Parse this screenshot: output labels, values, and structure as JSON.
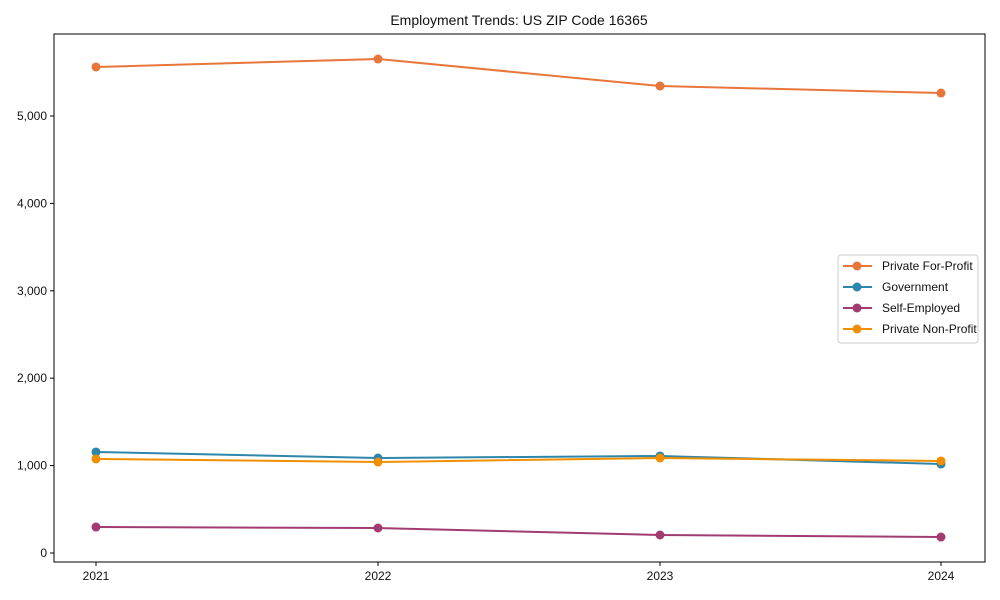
{
  "chart_data": {
    "type": "line",
    "title": "Employment Trends: US ZIP Code 16365",
    "xlabel": "",
    "ylabel": "",
    "categories": [
      "2021",
      "2022",
      "2023",
      "2024"
    ],
    "ylim": [
      -100,
      5900
    ],
    "yticks": [
      0,
      1000,
      2000,
      3000,
      4000,
      5000
    ],
    "ytick_labels": [
      "0",
      "1,000",
      "2,000",
      "3,000",
      "4,000",
      "5,000"
    ],
    "grid": false,
    "legend_position": "center right",
    "series": [
      {
        "name": "Private For-Profit",
        "color": "#E8763A",
        "values": [
          5561,
          5652,
          5343,
          5263
        ]
      },
      {
        "name": "Government",
        "color": "#2E86AB",
        "values": [
          1156,
          1087,
          1110,
          1018
        ]
      },
      {
        "name": "Self-Employed",
        "color": "#A23B72",
        "values": [
          297,
          286,
          206,
          183
        ]
      },
      {
        "name": "Private Non-Profit",
        "color": "#F18F01",
        "values": [
          1076,
          1041,
          1087,
          1053
        ]
      }
    ]
  }
}
